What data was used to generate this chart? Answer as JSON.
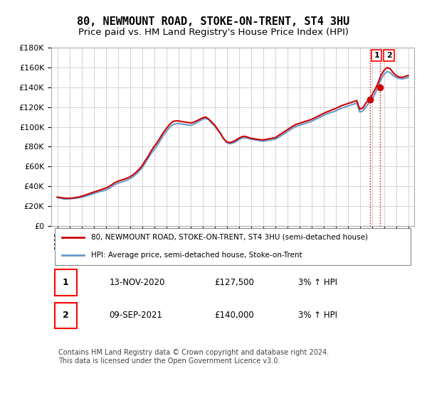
{
  "title": "80, NEWMOUNT ROAD, STOKE-ON-TRENT, ST4 3HU",
  "subtitle": "Price paid vs. HM Land Registry's House Price Index (HPI)",
  "title_fontsize": 11,
  "subtitle_fontsize": 9.5,
  "ylim": [
    0,
    180000
  ],
  "yticks": [
    0,
    20000,
    40000,
    60000,
    80000,
    100000,
    120000,
    140000,
    160000,
    180000
  ],
  "ylabel_format": "£{0}K",
  "hpi_color": "#6699cc",
  "price_color": "#cc0000",
  "annotation_color": "#cc0000",
  "grid_color": "#cccccc",
  "background_color": "#ffffff",
  "legend_label_red": "80, NEWMOUNT ROAD, STOKE-ON-TRENT, ST4 3HU (semi-detached house)",
  "legend_label_blue": "HPI: Average price, semi-detached house, Stoke-on-Trent",
  "transaction1_num": "1",
  "transaction1_date": "13-NOV-2020",
  "transaction1_price": "£127,500",
  "transaction1_hpi": "3% ↑ HPI",
  "transaction1_year": 2020.87,
  "transaction2_num": "2",
  "transaction2_date": "09-SEP-2021",
  "transaction2_price": "£140,000",
  "transaction2_hpi": "3% ↑ HPI",
  "transaction2_year": 2021.69,
  "transaction1_value": 127500,
  "transaction2_value": 140000,
  "footer": "Contains HM Land Registry data © Crown copyright and database right 2024.\nThis data is licensed under the Open Government Licence v3.0.",
  "hpi_data_x": [
    1995.0,
    1995.25,
    1995.5,
    1995.75,
    1996.0,
    1996.25,
    1996.5,
    1996.75,
    1997.0,
    1997.25,
    1997.5,
    1997.75,
    1998.0,
    1998.25,
    1998.5,
    1998.75,
    1999.0,
    1999.25,
    1999.5,
    1999.75,
    2000.0,
    2000.25,
    2000.5,
    2000.75,
    2001.0,
    2001.25,
    2001.5,
    2001.75,
    2002.0,
    2002.25,
    2002.5,
    2002.75,
    2003.0,
    2003.25,
    2003.5,
    2003.75,
    2004.0,
    2004.25,
    2004.5,
    2004.75,
    2005.0,
    2005.25,
    2005.5,
    2005.75,
    2006.0,
    2006.25,
    2006.5,
    2006.75,
    2007.0,
    2007.25,
    2007.5,
    2007.75,
    2008.0,
    2008.25,
    2008.5,
    2008.75,
    2009.0,
    2009.25,
    2009.5,
    2009.75,
    2010.0,
    2010.25,
    2010.5,
    2010.75,
    2011.0,
    2011.25,
    2011.5,
    2011.75,
    2012.0,
    2012.25,
    2012.5,
    2012.75,
    2013.0,
    2013.25,
    2013.5,
    2013.75,
    2014.0,
    2014.25,
    2014.5,
    2014.75,
    2015.0,
    2015.25,
    2015.5,
    2015.75,
    2016.0,
    2016.25,
    2016.5,
    2016.75,
    2017.0,
    2017.25,
    2017.5,
    2017.75,
    2018.0,
    2018.25,
    2018.5,
    2018.75,
    2019.0,
    2019.25,
    2019.5,
    2019.75,
    2020.0,
    2020.25,
    2020.5,
    2020.75,
    2021.0,
    2021.25,
    2021.5,
    2021.75,
    2022.0,
    2022.25,
    2022.5,
    2022.75,
    2023.0,
    2023.25,
    2023.5,
    2023.75,
    2024.0
  ],
  "hpi_data_y": [
    28500,
    27800,
    27200,
    27000,
    27200,
    27500,
    27800,
    28200,
    28800,
    29500,
    30500,
    31500,
    32500,
    33500,
    34500,
    35200,
    36000,
    37500,
    39500,
    41500,
    43000,
    44000,
    45000,
    46000,
    47500,
    49500,
    52000,
    55000,
    58500,
    63000,
    68000,
    73000,
    77000,
    81000,
    86000,
    91000,
    95000,
    99000,
    102000,
    103000,
    103500,
    103000,
    102500,
    102000,
    101500,
    102500,
    104000,
    106000,
    107500,
    108500,
    107500,
    104000,
    101000,
    97000,
    93000,
    88000,
    84000,
    83000,
    83500,
    85000,
    87000,
    88500,
    89000,
    88500,
    87500,
    87000,
    86500,
    86000,
    85500,
    86000,
    86500,
    87000,
    87500,
    89000,
    91000,
    93000,
    95000,
    97000,
    99000,
    100500,
    101500,
    102500,
    103500,
    104500,
    105500,
    107000,
    108500,
    110000,
    111500,
    113000,
    114000,
    115000,
    116000,
    117500,
    119000,
    120000,
    121000,
    122000,
    123000,
    124000,
    115000,
    116000,
    120000,
    124000,
    128000,
    133000,
    140000,
    148000,
    153000,
    156000,
    155000,
    152000,
    150000,
    149000,
    148500,
    149000,
    150000
  ],
  "price_data_x": [
    1995.0,
    1995.25,
    1995.5,
    1995.75,
    1996.0,
    1996.25,
    1996.5,
    1996.75,
    1997.0,
    1997.25,
    1997.5,
    1997.75,
    1998.0,
    1998.25,
    1998.5,
    1998.75,
    1999.0,
    1999.25,
    1999.5,
    1999.75,
    2000.0,
    2000.25,
    2000.5,
    2000.75,
    2001.0,
    2001.25,
    2001.5,
    2001.75,
    2002.0,
    2002.25,
    2002.5,
    2002.75,
    2003.0,
    2003.25,
    2003.5,
    2003.75,
    2004.0,
    2004.25,
    2004.5,
    2004.75,
    2005.0,
    2005.25,
    2005.5,
    2005.75,
    2006.0,
    2006.25,
    2006.5,
    2006.75,
    2007.0,
    2007.25,
    2007.5,
    2007.75,
    2008.0,
    2008.25,
    2008.5,
    2008.75,
    2009.0,
    2009.25,
    2009.5,
    2009.75,
    2010.0,
    2010.25,
    2010.5,
    2010.75,
    2011.0,
    2011.25,
    2011.5,
    2011.75,
    2012.0,
    2012.25,
    2012.5,
    2012.75,
    2013.0,
    2013.25,
    2013.5,
    2013.75,
    2014.0,
    2014.25,
    2014.5,
    2014.75,
    2015.0,
    2015.25,
    2015.5,
    2015.75,
    2016.0,
    2016.25,
    2016.5,
    2016.75,
    2017.0,
    2017.25,
    2017.5,
    2017.75,
    2018.0,
    2018.25,
    2018.5,
    2018.75,
    2019.0,
    2019.25,
    2019.5,
    2019.75,
    2020.0,
    2020.25,
    2020.5,
    2020.75,
    2021.0,
    2021.25,
    2021.5,
    2021.75,
    2022.0,
    2022.25,
    2022.5,
    2022.75,
    2023.0,
    2023.25,
    2023.5,
    2023.75,
    2024.0
  ],
  "price_data_y": [
    29000,
    28500,
    28000,
    27800,
    27800,
    28000,
    28500,
    29000,
    29800,
    30800,
    31800,
    33000,
    34000,
    35000,
    36000,
    37000,
    38000,
    39500,
    41500,
    43500,
    45000,
    46000,
    47000,
    48000,
    49500,
    51500,
    54000,
    57000,
    60500,
    65500,
    70000,
    75500,
    80000,
    84000,
    89000,
    94000,
    98000,
    102000,
    105000,
    106000,
    106000,
    105500,
    105000,
    104500,
    104000,
    104500,
    106000,
    107500,
    109000,
    110000,
    108000,
    105000,
    102000,
    97500,
    93000,
    88000,
    85000,
    84000,
    85000,
    86500,
    88500,
    90000,
    90500,
    89500,
    88500,
    88000,
    87500,
    87000,
    86800,
    87300,
    88000,
    88500,
    89000,
    91000,
    93000,
    95000,
    97000,
    99000,
    101000,
    102500,
    103500,
    104500,
    105500,
    106500,
    107500,
    109000,
    110500,
    112000,
    113500,
    115000,
    116000,
    117500,
    118500,
    120000,
    121500,
    122500,
    123500,
    124500,
    125500,
    126500,
    118000,
    119000,
    124000,
    127500,
    132000,
    137500,
    144000,
    152000,
    157000,
    160000,
    159000,
    155000,
    152000,
    150500,
    150000,
    151000,
    152000
  ]
}
